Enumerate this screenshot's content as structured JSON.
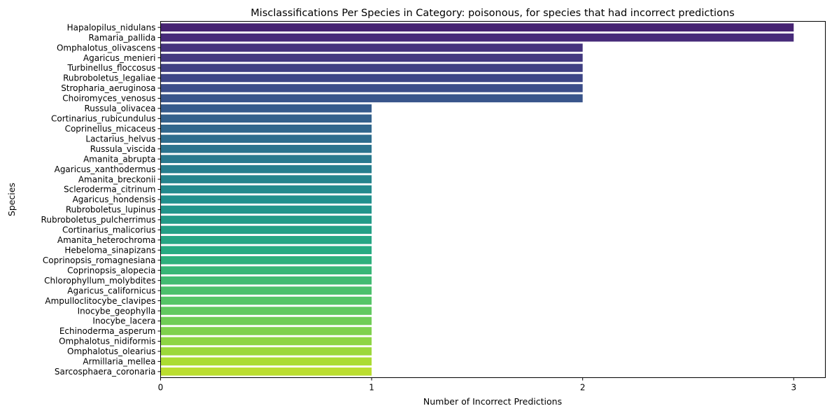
{
  "chart_data": {
    "type": "bar",
    "orientation": "horizontal",
    "title": "Misclassifications Per Species in Category: poisonous, for species that had incorrect predictions",
    "xlabel": "Number of Incorrect Predictions",
    "ylabel": "Species",
    "xlim": [
      0,
      3.15
    ],
    "xticks": [
      "0",
      "1",
      "2",
      "3"
    ],
    "colormap": "viridis",
    "grid": false,
    "categories": [
      "Hapalopilus_nidulans",
      "Ramaria_pallida",
      "Omphalotus_olivascens",
      "Agaricus_menieri",
      "Turbinellus_floccosus",
      "Rubroboletus_legaliae",
      "Stropharia_aeruginosa",
      "Choiromyces_venosus",
      "Russula_olivacea",
      "Cortinarius_rubicundulus",
      "Coprinellus_micaceus",
      "Lactarius_helvus",
      "Russula_viscida",
      "Amanita_abrupta",
      "Agaricus_xanthodermus",
      "Amanita_breckonii",
      "Scleroderma_citrinum",
      "Agaricus_hondensis",
      "Rubroboletus_lupinus",
      "Rubroboletus_pulcherrimus",
      "Cortinarius_malicorius",
      "Amanita_heterochroma",
      "Hebeloma_sinapizans",
      "Coprinopsis_romagnesiana",
      "Coprinopsis_alopecia",
      "Chlorophyllum_molybdites",
      "Agaricus_californicus",
      "Ampulloclitocybe_clavipes",
      "Inocybe_geophylla",
      "Inocybe_lacera",
      "Echinoderma_asperum",
      "Omphalotus_nidiformis",
      "Omphalotus_olearius",
      "Armillaria_mellea",
      "Sarcosphaera_coronaria"
    ],
    "values": [
      3,
      3,
      2,
      2,
      2,
      2,
      2,
      2,
      1,
      1,
      1,
      1,
      1,
      1,
      1,
      1,
      1,
      1,
      1,
      1,
      1,
      1,
      1,
      1,
      1,
      1,
      1,
      1,
      1,
      1,
      1,
      1,
      1,
      1,
      1
    ]
  }
}
